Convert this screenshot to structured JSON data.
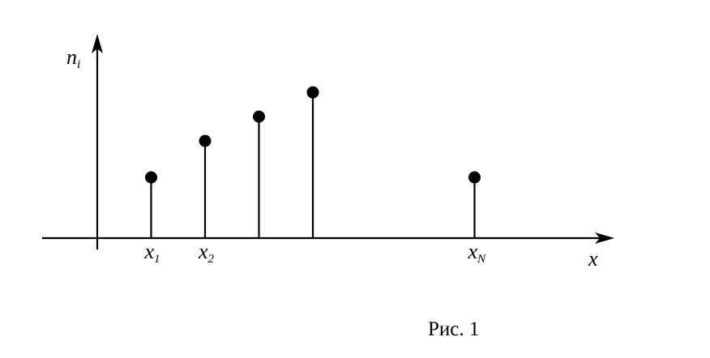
{
  "chart_data": {
    "type": "scatter",
    "style": "stem",
    "x_axis_label": "x",
    "y_axis_label_base": "n",
    "y_axis_label_sub": "i",
    "points": [
      {
        "x": 1,
        "y": 2.5,
        "label_base": "x",
        "label_sub": "1"
      },
      {
        "x": 2,
        "y": 4.0,
        "label_base": "x",
        "label_sub": "2"
      },
      {
        "x": 3,
        "y": 5.0,
        "label_base": "",
        "label_sub": ""
      },
      {
        "x": 4,
        "y": 6.0,
        "label_base": "",
        "label_sub": ""
      },
      {
        "x": 7,
        "y": 2.5,
        "label_base": "x",
        "label_sub": "N"
      }
    ],
    "xlim": [
      0,
      10
    ],
    "ylim": [
      0,
      8
    ],
    "grid": false,
    "colors": {
      "marks": "#000000",
      "background": "#ffffff"
    }
  },
  "caption": "Рис. 1"
}
